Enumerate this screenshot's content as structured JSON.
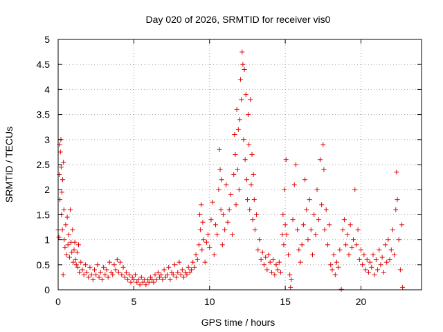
{
  "chart_data": {
    "type": "scatter",
    "title": "Day 020 of 2026, SRMTID for receiver vis0",
    "xlabel": "GPS time / hours",
    "ylabel": "SRMTID / TECUs",
    "xlim": [
      0,
      24
    ],
    "ylim": [
      0,
      5
    ],
    "xticks": [
      0,
      5,
      10,
      15,
      20
    ],
    "xtick_labels": [
      "0",
      "5",
      "10",
      "15",
      "20"
    ],
    "yticks": [
      0,
      0.5,
      1,
      1.5,
      2,
      2.5,
      3,
      3.5,
      4,
      4.5,
      5
    ],
    "ytick_labels": [
      "0",
      "0.5",
      "1",
      "1.5",
      "2",
      "2.5",
      "3",
      "3.5",
      "4",
      "4.5",
      "5"
    ],
    "grid": true,
    "marker": "plus",
    "color": "#e00000",
    "series": [
      {
        "name": "vis0",
        "points": [
          [
            0.0,
            1.2
          ],
          [
            0.05,
            1.05
          ],
          [
            0.08,
            2.3
          ],
          [
            0.1,
            2.9
          ],
          [
            0.12,
            1.8
          ],
          [
            0.15,
            2.75
          ],
          [
            0.18,
            3.0
          ],
          [
            0.2,
            2.45
          ],
          [
            0.22,
            1.5
          ],
          [
            0.25,
            1.95
          ],
          [
            0.28,
            1.2
          ],
          [
            0.3,
            2.2
          ],
          [
            0.33,
            0.3
          ],
          [
            0.35,
            2.55
          ],
          [
            0.38,
            1.6
          ],
          [
            0.4,
            1.0
          ],
          [
            0.45,
            0.85
          ],
          [
            0.5,
            1.3
          ],
          [
            0.55,
            0.7
          ],
          [
            0.6,
            1.45
          ],
          [
            0.65,
            0.9
          ],
          [
            0.7,
            1.1
          ],
          [
            0.75,
            0.65
          ],
          [
            0.8,
            1.6
          ],
          [
            0.85,
            0.95
          ],
          [
            0.9,
            0.75
          ],
          [
            0.95,
            1.2
          ],
          [
            1.0,
            0.55
          ],
          [
            1.05,
            0.8
          ],
          [
            1.1,
            0.95
          ],
          [
            1.15,
            0.6
          ],
          [
            1.2,
            0.5
          ],
          [
            1.25,
            0.75
          ],
          [
            1.3,
            0.45
          ],
          [
            1.35,
            0.9
          ],
          [
            1.4,
            0.35
          ],
          [
            1.5,
            0.55
          ],
          [
            1.6,
            0.4
          ],
          [
            1.7,
            0.3
          ],
          [
            1.8,
            0.5
          ],
          [
            1.9,
            0.35
          ],
          [
            2.0,
            0.25
          ],
          [
            2.1,
            0.45
          ],
          [
            2.2,
            0.3
          ],
          [
            2.3,
            0.2
          ],
          [
            2.4,
            0.4
          ],
          [
            2.5,
            0.3
          ],
          [
            2.6,
            0.5
          ],
          [
            2.7,
            0.25
          ],
          [
            2.8,
            0.35
          ],
          [
            2.9,
            0.2
          ],
          [
            3.0,
            0.45
          ],
          [
            3.1,
            0.3
          ],
          [
            3.2,
            0.4
          ],
          [
            3.3,
            0.25
          ],
          [
            3.4,
            0.55
          ],
          [
            3.5,
            0.35
          ],
          [
            3.6,
            0.3
          ],
          [
            3.7,
            0.5
          ],
          [
            3.8,
            0.4
          ],
          [
            3.9,
            0.6
          ],
          [
            4.0,
            0.35
          ],
          [
            4.1,
            0.55
          ],
          [
            4.2,
            0.3
          ],
          [
            4.3,
            0.45
          ],
          [
            4.4,
            0.25
          ],
          [
            4.5,
            0.35
          ],
          [
            4.6,
            0.2
          ],
          [
            4.7,
            0.3
          ],
          [
            4.8,
            0.15
          ],
          [
            4.9,
            0.25
          ],
          [
            5.0,
            0.2
          ],
          [
            5.1,
            0.3
          ],
          [
            5.2,
            0.15
          ],
          [
            5.3,
            0.2
          ],
          [
            5.4,
            0.1
          ],
          [
            5.5,
            0.25
          ],
          [
            5.6,
            0.15
          ],
          [
            5.7,
            0.2
          ],
          [
            5.8,
            0.1
          ],
          [
            5.9,
            0.2
          ],
          [
            6.0,
            0.15
          ],
          [
            6.1,
            0.25
          ],
          [
            6.2,
            0.2
          ],
          [
            6.3,
            0.15
          ],
          [
            6.4,
            0.3
          ],
          [
            6.5,
            0.2
          ],
          [
            6.6,
            0.35
          ],
          [
            6.7,
            0.25
          ],
          [
            6.8,
            0.3
          ],
          [
            6.9,
            0.2
          ],
          [
            7.0,
            0.4
          ],
          [
            7.1,
            0.25
          ],
          [
            7.2,
            0.3
          ],
          [
            7.3,
            0.45
          ],
          [
            7.4,
            0.2
          ],
          [
            7.5,
            0.35
          ],
          [
            7.6,
            0.3
          ],
          [
            7.7,
            0.5
          ],
          [
            7.8,
            0.25
          ],
          [
            7.9,
            0.35
          ],
          [
            8.0,
            0.55
          ],
          [
            8.1,
            0.3
          ],
          [
            8.2,
            0.4
          ],
          [
            8.3,
            0.25
          ],
          [
            8.4,
            0.35
          ],
          [
            8.5,
            0.3
          ],
          [
            8.6,
            0.45
          ],
          [
            8.7,
            0.35
          ],
          [
            8.8,
            0.4
          ],
          [
            8.9,
            0.55
          ],
          [
            9.0,
            0.45
          ],
          [
            9.1,
            0.7
          ],
          [
            9.2,
            0.6
          ],
          [
            9.3,
            0.9
          ],
          [
            9.35,
            1.5
          ],
          [
            9.4,
            1.2
          ],
          [
            9.45,
            1.7
          ],
          [
            9.5,
            0.8
          ],
          [
            9.55,
            1.35
          ],
          [
            9.6,
            1.0
          ],
          [
            9.7,
            0.55
          ],
          [
            9.8,
            0.95
          ],
          [
            9.9,
            1.1
          ],
          [
            10.0,
            0.85
          ],
          [
            10.1,
            1.4
          ],
          [
            10.2,
            1.75
          ],
          [
            10.3,
            0.7
          ],
          [
            10.4,
            1.3
          ],
          [
            10.5,
            1.1
          ],
          [
            10.6,
            2.0
          ],
          [
            10.65,
            2.8
          ],
          [
            10.7,
            2.4
          ],
          [
            10.75,
            1.6
          ],
          [
            10.8,
            2.2
          ],
          [
            10.85,
            0.9
          ],
          [
            10.9,
            1.5
          ],
          [
            11.0,
            1.2
          ],
          [
            11.1,
            2.1
          ],
          [
            11.2,
            1.35
          ],
          [
            11.3,
            1.6
          ],
          [
            11.4,
            1.9
          ],
          [
            11.5,
            1.1
          ],
          [
            11.6,
            2.3
          ],
          [
            11.65,
            3.1
          ],
          [
            11.7,
            2.7
          ],
          [
            11.75,
            1.7
          ],
          [
            11.8,
            3.6
          ],
          [
            11.85,
            2.4
          ],
          [
            11.9,
            3.2
          ],
          [
            11.95,
            2.0
          ],
          [
            12.0,
            3.4
          ],
          [
            12.05,
            4.2
          ],
          [
            12.1,
            3.8
          ],
          [
            12.15,
            4.75
          ],
          [
            12.2,
            4.5
          ],
          [
            12.25,
            3.0
          ],
          [
            12.3,
            4.4
          ],
          [
            12.35,
            2.6
          ],
          [
            12.4,
            3.9
          ],
          [
            12.45,
            2.2
          ],
          [
            12.5,
            1.8
          ],
          [
            12.55,
            3.5
          ],
          [
            12.6,
            2.9
          ],
          [
            12.65,
            1.6
          ],
          [
            12.7,
            3.8
          ],
          [
            12.75,
            2.1
          ],
          [
            12.8,
            2.7
          ],
          [
            12.85,
            1.4
          ],
          [
            12.9,
            2.3
          ],
          [
            12.95,
            1.8
          ],
          [
            13.0,
            1.2
          ],
          [
            13.1,
            1.5
          ],
          [
            13.2,
            0.8
          ],
          [
            13.3,
            1.0
          ],
          [
            13.4,
            0.6
          ],
          [
            13.5,
            0.75
          ],
          [
            13.6,
            0.5
          ],
          [
            13.7,
            0.65
          ],
          [
            13.8,
            0.4
          ],
          [
            13.9,
            0.7
          ],
          [
            14.0,
            0.55
          ],
          [
            14.1,
            0.35
          ],
          [
            14.2,
            0.6
          ],
          [
            14.3,
            0.3
          ],
          [
            14.4,
            0.5
          ],
          [
            14.5,
            0.4
          ],
          [
            14.6,
            0.55
          ],
          [
            14.7,
            0.35
          ],
          [
            14.8,
            1.1
          ],
          [
            14.85,
            1.5
          ],
          [
            14.9,
            0.9
          ],
          [
            14.95,
            2.0
          ],
          [
            15.0,
            1.3
          ],
          [
            15.05,
            2.6
          ],
          [
            15.1,
            1.1
          ],
          [
            15.2,
            0.7
          ],
          [
            15.3,
            0.3
          ],
          [
            15.35,
            0.05
          ],
          [
            15.4,
            0.2
          ],
          [
            15.5,
            1.4
          ],
          [
            15.6,
            2.1
          ],
          [
            15.7,
            2.5
          ],
          [
            15.8,
            1.2
          ],
          [
            15.9,
            0.8
          ],
          [
            16.0,
            0.55
          ],
          [
            16.1,
            0.9
          ],
          [
            16.2,
            1.3
          ],
          [
            16.3,
            2.2
          ],
          [
            16.4,
            1.6
          ],
          [
            16.5,
            1.0
          ],
          [
            16.6,
            1.8
          ],
          [
            16.7,
            1.2
          ],
          [
            16.8,
            0.7
          ],
          [
            16.9,
            1.5
          ],
          [
            17.0,
            1.1
          ],
          [
            17.1,
            2.0
          ],
          [
            17.2,
            1.4
          ],
          [
            17.3,
            2.6
          ],
          [
            17.4,
            1.7
          ],
          [
            17.5,
            2.9
          ],
          [
            17.55,
            2.4
          ],
          [
            17.6,
            1.2
          ],
          [
            17.7,
            1.6
          ],
          [
            17.8,
            0.9
          ],
          [
            17.9,
            1.3
          ],
          [
            18.0,
            0.5
          ],
          [
            18.1,
            0.4
          ],
          [
            18.2,
            0.7
          ],
          [
            18.3,
            0.3
          ],
          [
            18.4,
            0.55
          ],
          [
            18.5,
            0.45
          ],
          [
            18.6,
            0.8
          ],
          [
            18.7,
            0.01
          ],
          [
            18.8,
            1.2
          ],
          [
            18.9,
            1.4
          ],
          [
            19.0,
            0.9
          ],
          [
            19.1,
            1.1
          ],
          [
            19.2,
            0.7
          ],
          [
            19.3,
            1.3
          ],
          [
            19.4,
            0.85
          ],
          [
            19.5,
            1.0
          ],
          [
            19.6,
            2.0
          ],
          [
            19.7,
            0.9
          ],
          [
            19.8,
            1.2
          ],
          [
            19.9,
            0.6
          ],
          [
            20.0,
            0.8
          ],
          [
            20.1,
            0.5
          ],
          [
            20.2,
            0.7
          ],
          [
            20.3,
            0.4
          ],
          [
            20.4,
            0.6
          ],
          [
            20.5,
            0.35
          ],
          [
            20.6,
            0.55
          ],
          [
            20.7,
            0.45
          ],
          [
            20.8,
            0.7
          ],
          [
            20.9,
            0.3
          ],
          [
            21.0,
            0.6
          ],
          [
            21.1,
            0.4
          ],
          [
            21.2,
            0.8
          ],
          [
            21.3,
            0.5
          ],
          [
            21.4,
            0.65
          ],
          [
            21.5,
            0.35
          ],
          [
            21.6,
            0.9
          ],
          [
            21.7,
            0.55
          ],
          [
            21.8,
            1.0
          ],
          [
            21.9,
            0.6
          ],
          [
            22.0,
            0.8
          ],
          [
            22.1,
            1.2
          ],
          [
            22.2,
            0.7
          ],
          [
            22.3,
            1.6
          ],
          [
            22.35,
            2.35
          ],
          [
            22.4,
            1.8
          ],
          [
            22.5,
            1.0
          ],
          [
            22.6,
            0.4
          ],
          [
            22.7,
            1.3
          ],
          [
            22.75,
            0.05
          ]
        ]
      }
    ]
  }
}
